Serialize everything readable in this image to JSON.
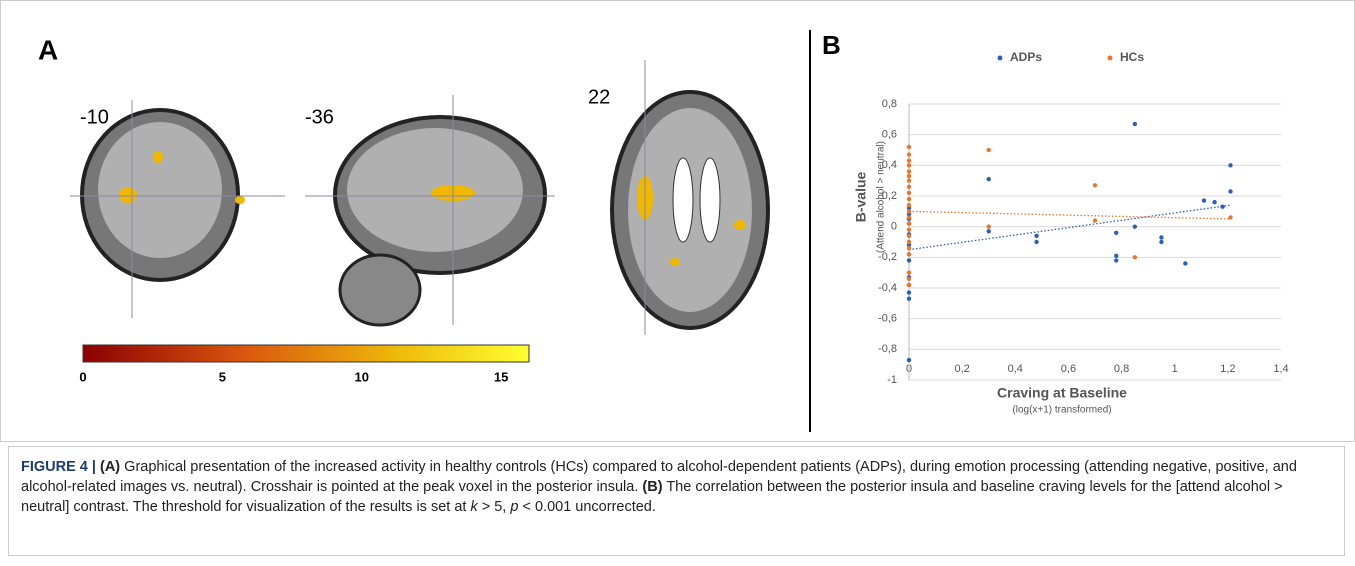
{
  "panel_a": {
    "label": "A",
    "slices": [
      "-10",
      "-36",
      "22"
    ],
    "colorbar": {
      "lim": [
        0,
        16
      ],
      "ticks": [
        0,
        5,
        10,
        15
      ]
    }
  },
  "chart_data": {
    "type": "scatter",
    "panel_label": "B",
    "xlabel": "Craving at Baseline",
    "xlabel_sub": "(log(x+1) transformed)",
    "ylabel": "B-value",
    "ylabel_sub": "(Attend alcohol > neutral)",
    "xlim": [
      0,
      1.4
    ],
    "ylim": [
      -1,
      0.8
    ],
    "xticks": [
      0,
      {
        "value": 0.2,
        "label": "0,2"
      },
      {
        "value": 0.4,
        "label": "0,4"
      },
      {
        "value": 0.6,
        "label": "0,6"
      },
      {
        "value": 0.8,
        "label": "0,8"
      },
      1,
      {
        "value": 1.2,
        "label": "1,2"
      },
      {
        "value": 1.4,
        "label": "1,4"
      }
    ],
    "yticks": [
      {
        "value": 0.8,
        "label": "0,8"
      },
      {
        "value": 0.6,
        "label": "0,6"
      },
      {
        "value": 0.4,
        "label": "0,4"
      },
      {
        "value": 0.2,
        "label": "0,2"
      },
      0,
      {
        "value": -0.2,
        "label": "-0,2"
      },
      {
        "value": -0.4,
        "label": "-0,4"
      },
      {
        "value": -0.6,
        "label": "-0,6"
      },
      {
        "value": -0.8,
        "label": "-0,8"
      },
      -1
    ],
    "grid": true,
    "trend_x": [
      0,
      1.21
    ],
    "series": [
      {
        "name": "ADPs",
        "color": "#2e5fb5",
        "x": [
          0,
          0,
          0,
          0,
          0,
          0,
          0,
          0,
          0,
          0,
          0,
          0,
          0,
          0.3,
          0.3,
          0.48,
          0.48,
          0.78,
          0.78,
          0.78,
          0.85,
          0.85,
          0.95,
          0.95,
          1.04,
          1.11,
          1.15,
          1.18,
          1.21,
          1.21
        ],
        "values": [
          -0.87,
          -0.47,
          -0.43,
          -0.38,
          -0.33,
          -0.22,
          -0.18,
          -0.12,
          -0.05,
          0.02,
          0.05,
          0.08,
          0.12,
          0.31,
          -0.03,
          -0.06,
          -0.1,
          -0.04,
          -0.19,
          -0.22,
          0.67,
          0.0,
          -0.07,
          -0.1,
          -0.24,
          0.17,
          0.16,
          0.13,
          0.4,
          0.23
        ],
        "trend": [
          -0.15,
          0.14
        ]
      },
      {
        "name": "HCs",
        "color": "#e8772e",
        "x": [
          0,
          0,
          0,
          0,
          0,
          0,
          0,
          0,
          0,
          0,
          0,
          0,
          0,
          0,
          0,
          0,
          0,
          0,
          0,
          0,
          0,
          0,
          0.3,
          0.3,
          0.7,
          0.7,
          0.85,
          1.21
        ],
        "values": [
          0.52,
          0.47,
          0.43,
          0.4,
          0.36,
          0.33,
          0.3,
          0.26,
          0.22,
          0.18,
          0.14,
          0.1,
          0.06,
          0.02,
          -0.02,
          -0.06,
          -0.1,
          -0.14,
          -0.18,
          -0.3,
          -0.34,
          -0.38,
          0.5,
          0.0,
          0.27,
          0.04,
          -0.2,
          0.06
        ],
        "trend": [
          0.1,
          0.05
        ]
      }
    ]
  },
  "caption": [
    {
      "text": "FIGURE 4 | ",
      "style": "bold"
    },
    {
      "text": "(A)",
      "style": "bold"
    },
    {
      "text": " Graphical presentation of the increased activity in healthy controls (HCs) compared to alcohol-dependent patients (ADPs), during emotion processing (attending negative, positive, and alcohol-related images vs. neutral). Crosshair is pointed at the peak voxel in the posterior insula. ",
      "style": "normal"
    },
    {
      "text": "(B)",
      "style": "bold"
    },
    {
      "text": " The correlation between the posterior insula and baseline craving levels for the [attend alcohol > neutral] contrast. The threshold for visualization of the results is set at ",
      "style": "normal"
    },
    {
      "text": "k",
      "style": "italic"
    },
    {
      "text": " > 5, ",
      "style": "normal"
    },
    {
      "text": "p",
      "style": "italic"
    },
    {
      "text": " < 0.001 uncorrected.",
      "style": "normal"
    }
  ]
}
